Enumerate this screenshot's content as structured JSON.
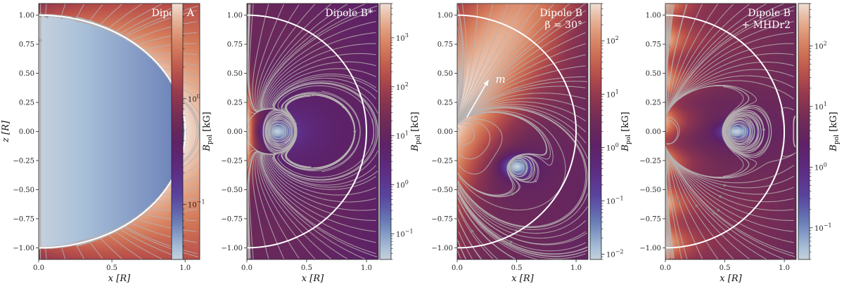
{
  "chart_data": [
    {
      "type": "heatmap",
      "title_lines": [
        "Dipole A"
      ],
      "xlabel": "x [R]",
      "ylabel": "z [R]",
      "xlim": [
        0,
        1.1
      ],
      "ylim": [
        -1.1,
        1.1
      ],
      "xticks": [
        "0.0",
        "0.5",
        "1.0"
      ],
      "yticks": [
        "1.00",
        "0.75",
        "0.50",
        "0.25",
        "0.00",
        "−0.25",
        "−0.50",
        "−0.75",
        "−1.00"
      ],
      "colorbar": {
        "label": "B_pol [kG]",
        "scale": "log",
        "range": [
          0.03,
          8
        ],
        "ticks": [
          {
            "value": 1,
            "label": "10^0"
          },
          {
            "value": 0.1,
            "label": "10^−1"
          }
        ]
      },
      "field": "uniform-interior-dipole-exterior",
      "stellar_surface_radius": 1.0
    },
    {
      "type": "heatmap",
      "title_lines": [
        "Dipole B*"
      ],
      "xlabel": "x [R]",
      "xlim": [
        0,
        1.1
      ],
      "ylim": [
        -1.1,
        1.1
      ],
      "xticks": [
        "0.0",
        "0.5",
        "1.0"
      ],
      "yticks": [
        "1.00",
        "0.75",
        "0.50",
        "0.25",
        "0.00",
        "−0.25",
        "−0.50",
        "−0.75",
        "−1.00"
      ],
      "colorbar": {
        "label": "B_pol [kG]",
        "scale": "log",
        "range": [
          0.03,
          5000
        ],
        "ticks": [
          {
            "value": 1000,
            "label": "10^3"
          },
          {
            "value": 100,
            "label": "10^2"
          },
          {
            "value": 10,
            "label": "10^1"
          },
          {
            "value": 1,
            "label": "10^0"
          },
          {
            "value": 0.1,
            "label": "10^−1"
          }
        ]
      },
      "o_point": [
        0.25,
        0.0
      ],
      "stellar_surface_radius": 1.0
    },
    {
      "type": "heatmap",
      "title_lines": [
        "Dipole B",
        "β = 30°"
      ],
      "xlabel": "x [R]",
      "xlim": [
        0,
        1.1
      ],
      "ylim": [
        -1.1,
        1.1
      ],
      "xticks": [
        "0.0",
        "0.5",
        "1.0"
      ],
      "yticks": [
        "1.00",
        "0.75",
        "0.50",
        "0.25",
        "0.00",
        "−0.25",
        "−0.50",
        "−0.75",
        "−1.00"
      ],
      "colorbar": {
        "label": "B_pol [kG]",
        "scale": "log",
        "range": [
          0.008,
          500
        ],
        "ticks": [
          {
            "value": 100,
            "label": "10^2"
          },
          {
            "value": 10,
            "label": "10^1"
          },
          {
            "value": 1,
            "label": "10^0"
          },
          {
            "value": 0.1,
            "label": "10^−1"
          },
          {
            "value": 0.01,
            "label": "10^−2"
          }
        ]
      },
      "o_point": [
        0.5,
        -0.3
      ],
      "moment_label": "m",
      "moment_inclination_deg": 30,
      "stellar_surface_radius": 1.0
    },
    {
      "type": "heatmap",
      "title_lines": [
        "Dipole B",
        "+ MHDr2"
      ],
      "xlabel": "x [R]",
      "xlim": [
        0,
        1.1
      ],
      "ylim": [
        -1.1,
        1.1
      ],
      "xticks": [
        "0.0",
        "0.5",
        "1.0"
      ],
      "yticks": [
        "1.00",
        "0.75",
        "0.50",
        "0.25",
        "0.00",
        "−0.25",
        "−0.50",
        "−0.75",
        "−1.00"
      ],
      "colorbar": {
        "label": "B_pol [kG]",
        "scale": "log",
        "range": [
          0.03,
          500
        ],
        "ticks": [
          {
            "value": 100,
            "label": "10^2"
          },
          {
            "value": 10,
            "label": "10^1"
          },
          {
            "value": 1,
            "label": "10^0"
          },
          {
            "value": 0.1,
            "label": "10^−1"
          }
        ]
      },
      "o_point": [
        0.6,
        0.0
      ],
      "stellar_surface_radius": 1.0
    }
  ],
  "colors": {
    "cmap": [
      "#e9e5e5",
      "#a9c0d8",
      "#6a80b8",
      "#5a45a0",
      "#5e2e86",
      "#5c2168",
      "#6d2a58",
      "#8e3550",
      "#b9504a",
      "#d47a5a",
      "#e5ab8d",
      "#f3ece8"
    ],
    "streamline": "#b7b2b2",
    "surface": "#ffffff"
  }
}
